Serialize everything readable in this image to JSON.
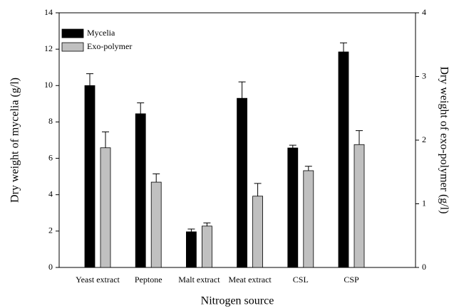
{
  "chart_data": {
    "type": "bar",
    "xlabel": "Nitrogen source",
    "ylabel": "Dry weight of mycelia (g/l)",
    "y2label": "Dry weight of exo-polymer (g/l)",
    "categories": [
      "Yeast extract",
      "Peptone",
      "Malt extract",
      "Meat extract",
      "CSL",
      "CSP"
    ],
    "series": [
      {
        "name": "Mycelia",
        "color": "#000000",
        "values": [
          10.0,
          8.45,
          1.96,
          9.3,
          6.57,
          11.85
        ],
        "errors": [
          0.65,
          0.6,
          0.15,
          0.9,
          0.15,
          0.5
        ]
      },
      {
        "name": "Exo-polymer",
        "color": "#c0c0c0",
        "axis": "y2",
        "values": [
          1.88,
          1.34,
          0.65,
          1.12,
          1.52,
          1.93
        ],
        "errors": [
          0.25,
          0.13,
          0.05,
          0.2,
          0.07,
          0.22
        ]
      }
    ],
    "ylim": [
      0,
      14
    ],
    "yticks": [
      0,
      2,
      4,
      6,
      8,
      10,
      12,
      14
    ],
    "y2lim": [
      0,
      4
    ],
    "y2ticks": [
      0,
      1,
      2,
      3,
      4
    ],
    "legend": "upper left"
  }
}
